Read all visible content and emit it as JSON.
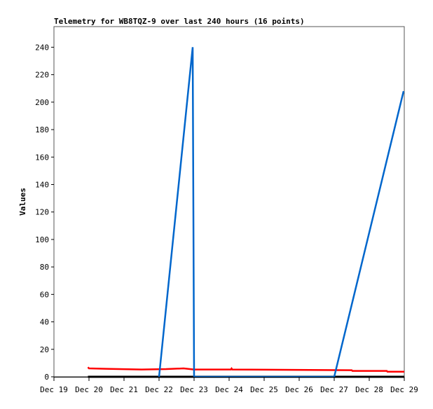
{
  "chart_data": {
    "type": "line",
    "title": "Telemetry for WB8TQZ-9 over last 240 hours (16 points)",
    "xlabel": "",
    "ylabel": "Values",
    "x_tick_labels": [
      "Dec 19",
      "Dec 20",
      "Dec 21",
      "Dec 22",
      "Dec 23",
      "Dec 24",
      "Dec 25",
      "Dec 26",
      "Dec 27",
      "Dec 28",
      "Dec 29"
    ],
    "y_ticks": [
      0,
      20,
      40,
      60,
      80,
      100,
      120,
      140,
      160,
      180,
      200,
      220,
      240
    ],
    "xlim_days": [
      19,
      29
    ],
    "ylim": [
      0,
      255
    ],
    "grid": false,
    "series": [
      {
        "color": "#000000",
        "points": [
          [
            19.97,
            0
          ],
          [
            29,
            0
          ]
        ]
      },
      {
        "color": "#ff0000",
        "points": [
          [
            19.97,
            7
          ],
          [
            20.0,
            6.1
          ],
          [
            20.5,
            5.8
          ],
          [
            21.5,
            5.3
          ],
          [
            22.2,
            5.6
          ],
          [
            22.7,
            6.1
          ],
          [
            23.0,
            5.3
          ],
          [
            24.05,
            5.3
          ],
          [
            24.07,
            6.0
          ],
          [
            24.09,
            5.3
          ],
          [
            27.5,
            4.8
          ],
          [
            27.52,
            4.3
          ],
          [
            28.5,
            4.3
          ],
          [
            28.52,
            3.7
          ],
          [
            29.0,
            3.7
          ]
        ]
      },
      {
        "color": "#0066cc",
        "points": [
          [
            22.0,
            0
          ],
          [
            22.96,
            240
          ],
          [
            22.98,
            121
          ],
          [
            23.0,
            0
          ],
          [
            27.0,
            0
          ],
          [
            28.98,
            208
          ]
        ]
      }
    ]
  }
}
